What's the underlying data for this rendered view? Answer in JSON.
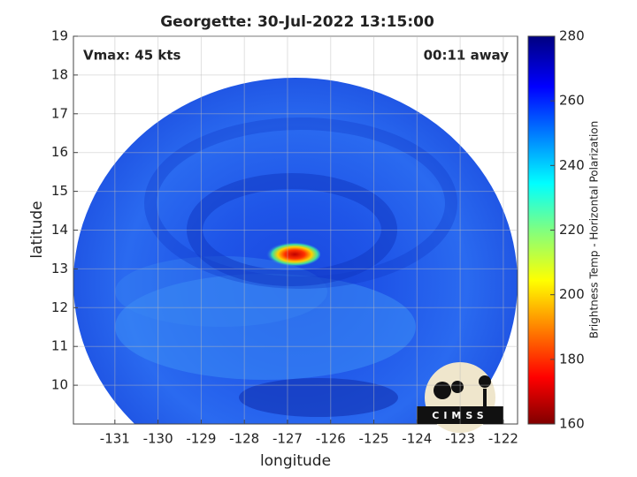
{
  "chart_data": {
    "type": "image",
    "title": "Georgette: 30-Jul-2022 13:15:00",
    "annotations": [
      "Vmax: 45 kts",
      "00:11 away"
    ],
    "xlabel": "longitude",
    "ylabel": "latitude",
    "xlim": [
      -131.96,
      -121.67
    ],
    "ylim": [
      9,
      19
    ],
    "xticks": [
      -131,
      -130,
      -129,
      -128,
      -127,
      -126,
      -125,
      -124,
      -123,
      -122
    ],
    "yticks": [
      10,
      11,
      12,
      13,
      14,
      15,
      16,
      17,
      18,
      19
    ],
    "grid": true,
    "colorbar": {
      "label": "Brightness Temp - Horizontal Polarization",
      "lim": [
        160,
        280
      ],
      "ticks": [
        160,
        180,
        200,
        220,
        240,
        260,
        280
      ]
    },
    "logo_text": "CIMSS"
  }
}
